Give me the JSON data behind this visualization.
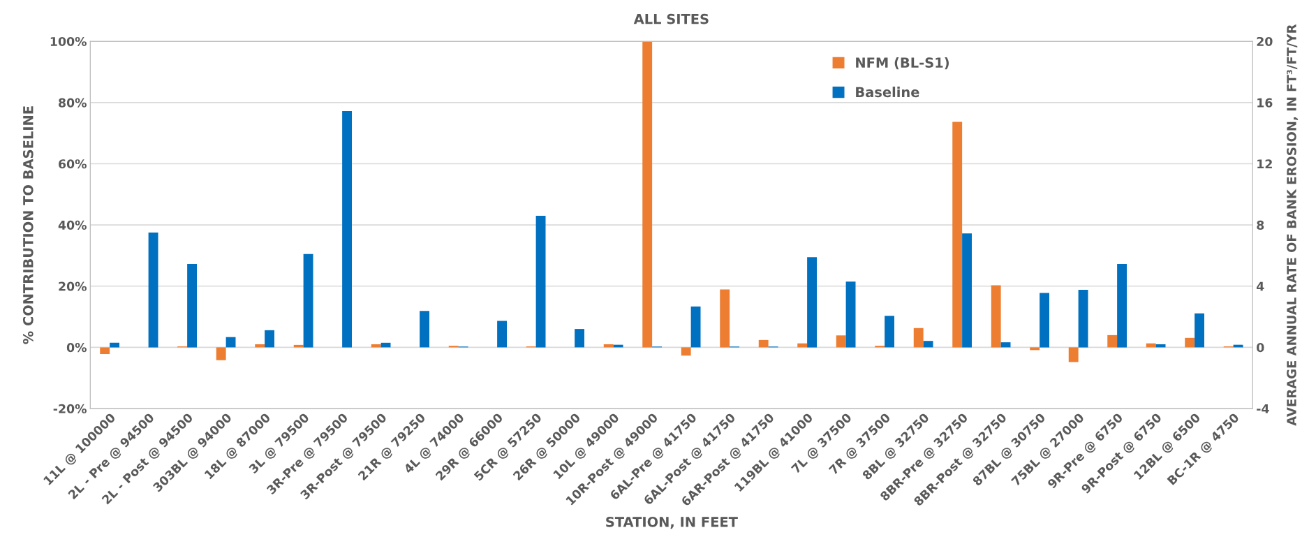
{
  "chart_data": {
    "type": "bar",
    "title": "ALL SITES",
    "xlabel": "STATION, IN FEET",
    "ylabel": "% CONTRIBUTION TO BASELINE",
    "y2label": "AVERAGE ANNUAL RATE OF BANK EROSION, IN FT³/FT/YR",
    "categories": [
      "11L @ 100000",
      "2L - Pre @ 94500",
      "2L - Post @ 94500",
      "303BL @ 94000",
      "18L @ 87000",
      "3L @ 79500",
      "3R-Pre @ 79500",
      "3R-Post @ 79500",
      "21R @ 79250",
      "4L @ 74000",
      "29R @ 66000",
      "5CR @ 57250",
      "26R @ 50000",
      "10L @ 49000",
      "10R-Post @ 49000",
      "6AL-Pre @ 41750",
      "6AL-Post @ 41750",
      "6AR-Post @ 41750",
      "119BL @ 41000",
      "7L @ 37500",
      "7R @ 37500",
      "8BL @ 32750",
      "8BR-Pre @ 32750",
      "8BR-Post @ 32750",
      "87BL @ 30750",
      "75BL @ 27000",
      "9R-Pre @ 6750",
      "9R-Post @ 6750",
      "12BL @ 6500",
      "BC-1R @ 4750"
    ],
    "series": [
      {
        "name": "NFM (BL-S1)",
        "color": "#ed7d31",
        "values": [
          -2.2,
          0,
          0.3,
          -4.2,
          1.0,
          0.8,
          0,
          1.0,
          0,
          0.5,
          0,
          0.3,
          0,
          1.0,
          100,
          -2.7,
          18.9,
          2.4,
          1.3,
          3.9,
          0.5,
          6.3,
          73.7,
          20.3,
          -0.9,
          -4.8,
          4.0,
          1.3,
          3.1,
          0.3
        ]
      },
      {
        "name": "Baseline",
        "color": "#0070c0",
        "axis": "y2",
        "values": [
          0.3,
          7.5,
          5.45,
          0.67,
          1.12,
          6.1,
          15.45,
          0.3,
          2.38,
          0.05,
          1.73,
          8.6,
          1.2,
          0.17,
          0.05,
          2.67,
          0.05,
          0.05,
          5.9,
          4.3,
          2.06,
          0.42,
          7.45,
          0.33,
          3.56,
          3.76,
          5.45,
          0.2,
          2.22,
          0.17
        ]
      }
    ],
    "ylim": [
      -20,
      100
    ],
    "yticks": [
      {
        "value": -20,
        "label": "-20%"
      },
      {
        "value": 0,
        "label": "0%"
      },
      {
        "value": 20,
        "label": "20%"
      },
      {
        "value": 40,
        "label": "40%"
      },
      {
        "value": 60,
        "label": "60%"
      },
      {
        "value": 80,
        "label": "80%"
      },
      {
        "value": 100,
        "label": "100%"
      }
    ],
    "y2lim": [
      -4,
      20
    ],
    "y2ticks": [
      -4,
      0,
      4,
      8,
      12,
      16,
      20
    ],
    "grid": "y",
    "legend": "top right"
  }
}
